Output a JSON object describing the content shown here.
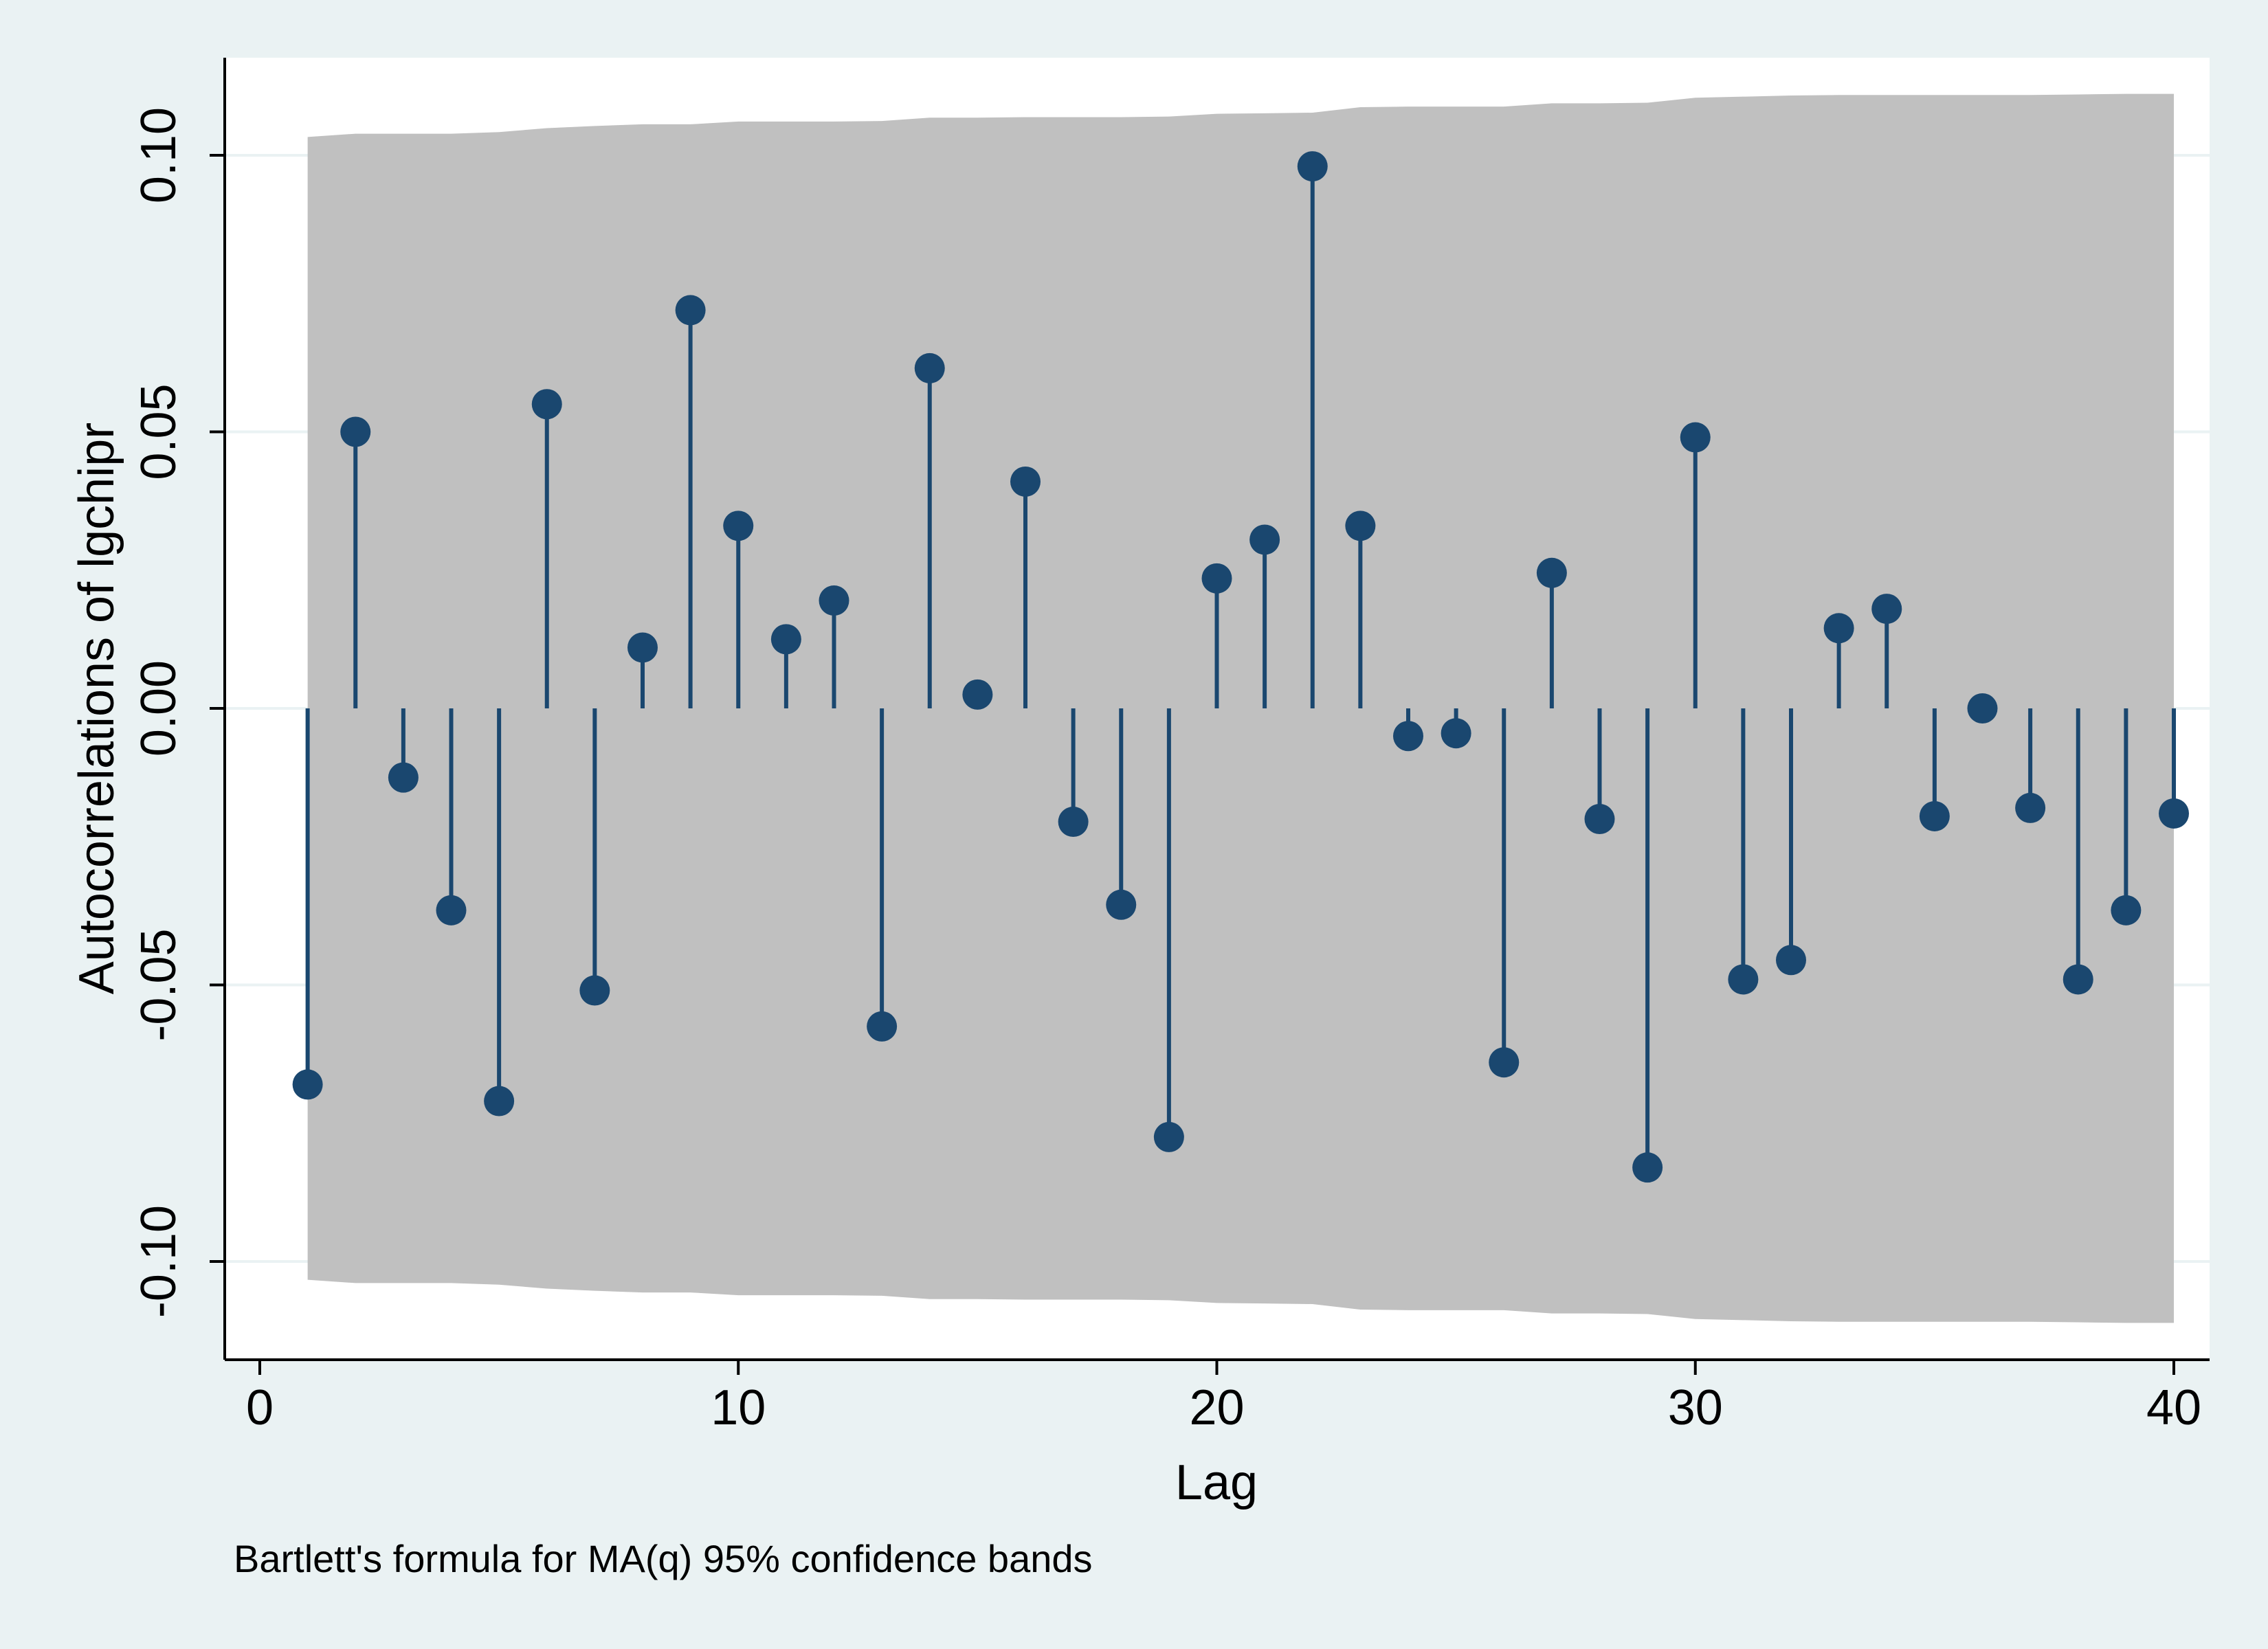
{
  "chart_data": {
    "type": "stem",
    "title": "",
    "xlabel": "Lag",
    "ylabel": "Autocorrelations of lgchipr",
    "note": "Bartlett's formula for MA(q) 95% confidence bands",
    "xlim": [
      -4,
      41
    ],
    "ylim": [
      -0.117,
      0.117
    ],
    "xticks": [
      0,
      10,
      20,
      30,
      40
    ],
    "yticks": [
      -0.1,
      -0.05,
      0.0,
      0.05,
      0.1
    ],
    "xtick_labels": [
      "0",
      "10",
      "20",
      "30",
      "40"
    ],
    "ytick_labels": [
      "-0.10",
      "-0.05",
      "0.00",
      "0.05",
      "0.10"
    ],
    "grid": true,
    "colors": {
      "background": "#eaf2f3",
      "plot_region": "#ffffff",
      "band": "#c0c0c0",
      "marker": "#1a476f",
      "grid": "#eaf2f3"
    },
    "series": [
      {
        "lags": [
          1,
          2,
          3,
          4,
          5,
          6,
          7,
          8,
          9,
          10,
          11,
          12,
          13,
          14,
          15,
          16,
          17,
          18,
          19,
          20,
          21,
          22,
          23,
          24,
          25,
          26,
          27,
          28,
          29,
          30,
          31,
          32,
          33,
          34,
          35,
          36,
          37,
          38,
          39,
          40
        ],
        "values": [
          -0.068,
          0.05,
          -0.0125,
          -0.0365,
          -0.071,
          0.055,
          -0.051,
          0.011,
          0.072,
          0.033,
          0.0125,
          0.0195,
          -0.0575,
          0.0615,
          0.0025,
          0.041,
          -0.0205,
          -0.0355,
          -0.0775,
          0.0235,
          0.0305,
          0.098,
          0.033,
          -0.005,
          -0.0045,
          -0.064,
          0.0245,
          -0.02,
          -0.083,
          0.049,
          -0.049,
          -0.0455,
          0.0145,
          0.018,
          -0.0195,
          0.0,
          -0.018,
          -0.049,
          -0.0365,
          -0.019
        ]
      }
    ],
    "confidence_band": {
      "lags": [
        1,
        2,
        3,
        4,
        5,
        6,
        7,
        8,
        9,
        10,
        11,
        12,
        13,
        14,
        15,
        16,
        17,
        18,
        19,
        20,
        21,
        22,
        23,
        24,
        25,
        26,
        27,
        28,
        29,
        30,
        31,
        32,
        33,
        34,
        35,
        36,
        37,
        38,
        39,
        40
      ],
      "upper": [
        0.1033,
        0.1039,
        0.1039,
        0.1039,
        0.1042,
        0.1049,
        0.1053,
        0.1056,
        0.1056,
        0.1061,
        0.1061,
        0.1061,
        0.1062,
        0.1068,
        0.1068,
        0.1069,
        0.1069,
        0.1069,
        0.107,
        0.1075,
        0.1076,
        0.1077,
        0.1087,
        0.1088,
        0.1088,
        0.1088,
        0.1094,
        0.1094,
        0.1095,
        0.1104,
        0.1106,
        0.1108,
        0.1109,
        0.1109,
        0.1109,
        0.1109,
        0.1109,
        0.111,
        0.1111,
        0.1111
      ]
    }
  }
}
